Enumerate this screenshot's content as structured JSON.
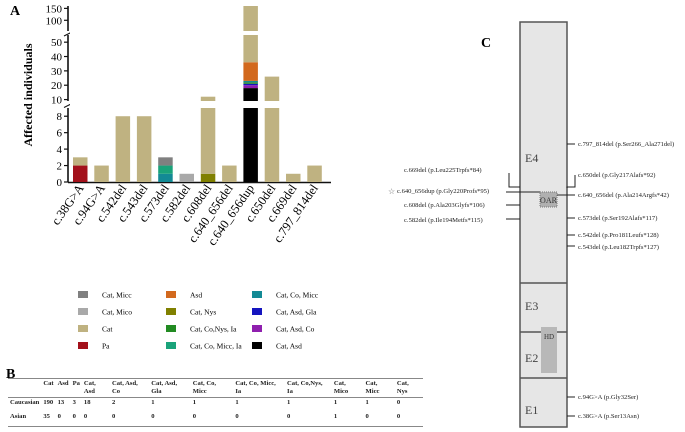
{
  "panel_labels": {
    "a": "A",
    "b": "B",
    "c": "C"
  },
  "chart_data": [
    {
      "type": "bar",
      "stacked": true,
      "title": "",
      "xlabel": "",
      "ylabel": "Affected individuals",
      "axis": {
        "lower_segment": {
          "range": [
            0,
            9
          ],
          "ticks": [
            0,
            2,
            4,
            6,
            8
          ]
        },
        "middle_segment": {
          "range": [
            9,
            55
          ],
          "ticks": [
            10,
            20,
            30,
            40,
            50
          ]
        },
        "upper_segment": {
          "range": [
            55,
            160
          ],
          "ticks": [
            100,
            150
          ]
        }
      },
      "categories": [
        "c.38G>A",
        "c.94G>A",
        "c.542del",
        "c.543del",
        "c.573del",
        "c.582del",
        "c.608del",
        "c.640_656del",
        "c.640_656dup",
        "c.650del",
        "c.669del",
        "c.797_814del"
      ],
      "colors": {
        "Cat, Micc": "#808080",
        "Cat, Mico": "#a9a9a9",
        "Cat": "#bfb281",
        "Pa": "#a3111b",
        "Asd": "#d2691e",
        "Cat, Nys": "#808000",
        "Cat, Co,Nys, Ia": "#228b22",
        "Cat, Co, Micc, Ia": "#1aa37a",
        "Cat, Co, Micc": "#138a95",
        "Cat, Asd, Gla": "#1515bf",
        "Cat, Asd, Co": "#8f1fae",
        "Cat, Asd": "#000000"
      },
      "legend": [
        "Cat, Micc",
        "Asd",
        "Cat, Co, Micc",
        "Cat, Mico",
        "Cat, Nys",
        "Cat, Asd, Gla",
        "Cat",
        "Cat, Co,Nys, Ia",
        "Cat, Asd, Co",
        "Pa",
        "Cat, Co, Micc, Ia",
        "Cat, Asd"
      ],
      "bars": [
        {
          "category": "c.38G>A",
          "segments": [
            {
              "label": "Pa",
              "value": 2
            },
            {
              "label": "Cat",
              "value": 1
            }
          ]
        },
        {
          "category": "c.94G>A",
          "segments": [
            {
              "label": "Cat",
              "value": 2
            }
          ]
        },
        {
          "category": "c.542del",
          "segments": [
            {
              "label": "Cat",
              "value": 8
            }
          ]
        },
        {
          "category": "c.543del",
          "segments": [
            {
              "label": "Cat",
              "value": 8
            }
          ]
        },
        {
          "category": "c.573del",
          "segments": [
            {
              "label": "Cat, Co, Micc",
              "value": 1
            },
            {
              "label": "Cat, Co, Micc, Ia",
              "value": 1
            },
            {
              "label": "Cat, Micc",
              "value": 1
            }
          ]
        },
        {
          "category": "c.582del",
          "segments": [
            {
              "label": "Cat, Mico",
              "value": 1
            }
          ]
        },
        {
          "category": "c.608del",
          "segments": [
            {
              "label": "Cat, Nys",
              "value": 1
            },
            {
              "label": "Cat",
              "value": 11
            }
          ]
        },
        {
          "category": "c.640_656del",
          "segments": [
            {
              "label": "Cat",
              "value": 2
            }
          ]
        },
        {
          "category": "c.640_656dup",
          "segments": [
            {
              "label": "Cat, Asd",
              "value": 18
            },
            {
              "label": "Cat, Asd, Co",
              "value": 2
            },
            {
              "label": "Cat, Asd, Gla",
              "value": 1
            },
            {
              "label": "Cat, Co,Nys, Ia",
              "value": 1
            },
            {
              "label": "Cat, Co, Micc",
              "value": 1
            },
            {
              "label": "Asd",
              "value": 13
            },
            {
              "label": "Cat",
              "value": 124
            }
          ]
        },
        {
          "category": "c.650del",
          "segments": [
            {
              "label": "Cat",
              "value": 26
            }
          ]
        },
        {
          "category": "c.669del",
          "segments": [
            {
              "label": "Cat",
              "value": 1
            }
          ]
        },
        {
          "category": "c.797_814del",
          "segments": [
            {
              "label": "Cat",
              "value": 2
            }
          ]
        }
      ]
    },
    {
      "type": "table",
      "columns": [
        "",
        "Cat",
        "Asd",
        "Pa",
        "Cat, Asd",
        "Cat, Asd, Co",
        "Cat, Asd, Gla",
        "Cat, Co, Micc",
        "Cat, Co, Micc, Ia",
        "Cat, Co,Nys, Ia",
        "Cat, Mico",
        "Cat, Micc",
        "Cat, Nys"
      ],
      "rows": [
        [
          "Caucasian",
          "190",
          "13",
          "3",
          "18",
          "2",
          "1",
          "1",
          "1",
          "1",
          "1",
          "1",
          "0"
        ],
        [
          "Asian",
          "35",
          "0",
          "0",
          "0",
          "0",
          "0",
          "0",
          "0",
          "0",
          "1",
          "0",
          "0"
        ]
      ]
    }
  ],
  "gene_diagram": {
    "exons": [
      "E4",
      "E3",
      "E2",
      "E1"
    ],
    "domains": {
      "oar": "OAR",
      "hd": "HD"
    },
    "variants_left": [
      "c.669del  (p.Leu225Trpfs*84)",
      "c.640_656dup (p.Gly220Profs*95)",
      "c.608del (p.Ala203Glyfs*106)",
      "c.582del (p.Ile194Metfs*115)"
    ],
    "star_symbol": "☆",
    "variants_right": [
      "c.797_814del (p.Ser266_Ala271del)",
      "c.650del (p.Gly217Alafs*92)",
      "c.640_656del (p.Ala214Argfs*42)",
      "c.573del (p.Ser192Alafs*117)",
      "c.542del (p.Pro181Leufs*128)",
      "c.543del (p.Leu182Trpfs*127)",
      "c.94G>A (p.Gly32Ser)",
      "c.38G>A  (p.Ser13Asn)"
    ]
  }
}
